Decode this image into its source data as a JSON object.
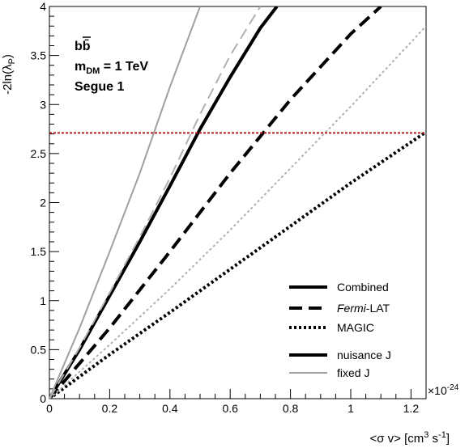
{
  "chart_data": {
    "type": "line",
    "xlabel": "<σ v> [cm³ s⁻¹]",
    "xlabel_parts": {
      "base": "<σ v> [cm",
      "sup1": "3",
      "mid": " s",
      "sup2": "-1",
      "end": "]"
    },
    "ylabel": "-2ln(λP)",
    "ylabel_parts": {
      "base": "-2ln(λ",
      "sub": "P",
      "end": ")"
    },
    "x_exponent_label": "×10",
    "x_exponent_power": "-24",
    "xlim": [
      0,
      1.25
    ],
    "ylim": [
      0,
      4
    ],
    "x_ticks": [
      "0",
      "0.2",
      "0.4",
      "0.6",
      "0.8",
      "1",
      "1.2"
    ],
    "x_tick_values": [
      0,
      0.2,
      0.4,
      0.6,
      0.8,
      1.0,
      1.2
    ],
    "y_ticks": [
      "0",
      "0.5",
      "1",
      "1.5",
      "2",
      "2.5",
      "3",
      "3.5",
      "4"
    ],
    "y_tick_values": [
      0,
      0.5,
      1,
      1.5,
      2,
      2.5,
      3,
      3.5,
      4
    ],
    "threshold": {
      "value": 2.71,
      "color": "#b22222"
    },
    "annotations": {
      "channel": "bb̄",
      "mass_prefix": "m",
      "mass_sub": "DM",
      "mass_value": " = 1 TeV",
      "target": "Segue 1"
    },
    "series": [
      {
        "name": "Combined",
        "style": "solid",
        "weight": "thick",
        "color": "#000000",
        "x": [
          0.0,
          0.1,
          0.2,
          0.3,
          0.4,
          0.5,
          0.6,
          0.7,
          0.755
        ],
        "y": [
          0.0,
          0.5,
          1.05,
          1.6,
          2.17,
          2.75,
          3.28,
          3.78,
          4.0
        ]
      },
      {
        "name": "Fermi-LAT",
        "style": "dashed",
        "weight": "thick",
        "color": "#000000",
        "x": [
          0.0,
          0.2,
          0.4,
          0.6,
          0.8,
          1.0,
          1.1
        ],
        "y": [
          0.0,
          0.72,
          1.5,
          2.3,
          3.05,
          3.72,
          4.0
        ]
      },
      {
        "name": "MAGIC",
        "style": "dotted",
        "weight": "thick",
        "color": "#000000",
        "x": [
          0.0,
          0.2,
          0.4,
          0.6,
          0.8,
          1.0,
          1.25
        ],
        "y": [
          0.0,
          0.45,
          0.88,
          1.32,
          1.76,
          2.2,
          2.72
        ]
      },
      {
        "name": "",
        "style": "solid",
        "weight": "thin",
        "color": "#a0a0a0",
        "x": [
          0.0,
          0.1,
          0.2,
          0.3,
          0.4,
          0.5
        ],
        "y": [
          0.0,
          0.72,
          1.5,
          2.3,
          3.18,
          4.0
        ]
      },
      {
        "name": "",
        "style": "dashed",
        "weight": "thin",
        "color": "#b0b0b0",
        "x": [
          0.0,
          0.1,
          0.2,
          0.3,
          0.4,
          0.5,
          0.6,
          0.7
        ],
        "y": [
          0.0,
          0.52,
          1.08,
          1.65,
          2.25,
          2.9,
          3.5,
          4.0
        ]
      },
      {
        "name": "",
        "style": "dotted",
        "weight": "thin",
        "color": "#b0b0b0",
        "x": [
          0.0,
          0.2,
          0.4,
          0.6,
          0.8,
          1.0,
          1.25
        ],
        "y": [
          0.0,
          0.55,
          1.12,
          1.72,
          2.35,
          2.98,
          3.8
        ]
      }
    ],
    "legend": {
      "placement": "bottom-right",
      "entries": [
        {
          "label": "Combined",
          "style": "solid",
          "weight": "thick",
          "color": "#000000"
        },
        {
          "label_italic": "Fermi",
          "label": "-LAT",
          "style": "dashed",
          "weight": "thick",
          "color": "#000000"
        },
        {
          "label": "MAGIC",
          "style": "dotted",
          "weight": "thick",
          "color": "#000000"
        },
        {
          "label": "nuisance J",
          "style": "solid",
          "weight": "thick",
          "color": "#000000"
        },
        {
          "label": "fixed J",
          "style": "solid",
          "weight": "thin",
          "color": "#a0a0a0"
        }
      ]
    },
    "grid": false
  }
}
